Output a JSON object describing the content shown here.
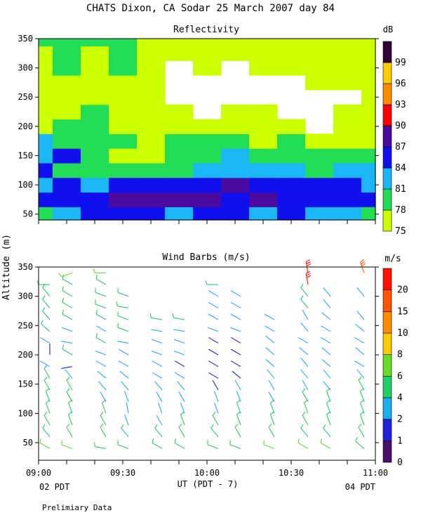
{
  "title": "CHATS Dixon, CA  Sodar  25 March 2007  day  84",
  "footer": {
    "left_time_label": "02 PDT",
    "right_time_label": "04 PDT",
    "xlabel": "UT  (PDT - 7)",
    "note": "Prelimiary Data"
  },
  "shared_axis": {
    "ylabel": "Altitude (m)"
  },
  "chart_data": [
    {
      "type": "heatmap",
      "title": "Reflectivity",
      "ylim": [
        40,
        350
      ],
      "yticks": [
        50,
        100,
        150,
        200,
        250,
        300,
        350
      ],
      "xlim_minutes": [
        0,
        120
      ],
      "colorbar": {
        "unit": "dB",
        "levels": [
          75,
          78,
          81,
          84,
          87,
          90,
          93,
          96,
          99
        ],
        "labels": [
          "75",
          "78",
          "81",
          "84",
          "87",
          "90",
          "93",
          "96",
          "99"
        ],
        "colors": [
          "#ccff00",
          "#22dd55",
          "#1ab6f5",
          "#1010ee",
          "#4a0aa0",
          "#ff0000",
          "#ff8c00",
          "#ffcc00",
          "#330033"
        ]
      },
      "time_minutes": [
        0,
        10,
        20,
        30,
        40,
        50,
        60,
        70,
        80,
        90,
        100,
        110,
        120
      ],
      "altitudes": [
        50,
        75,
        100,
        125,
        150,
        175,
        200,
        225,
        250,
        275,
        300,
        325,
        350
      ],
      "values_db": [
        [
          79,
          82,
          84,
          86,
          84,
          83,
          84,
          85,
          83,
          84,
          83,
          81,
          80
        ],
        [
          84,
          84,
          86,
          87,
          87,
          88,
          89,
          86,
          87,
          85,
          86,
          86,
          84
        ],
        [
          82,
          84,
          83,
          84,
          85,
          85,
          86,
          87,
          85,
          84,
          86,
          85,
          83
        ],
        [
          84,
          80,
          79,
          78,
          79,
          80,
          81,
          82,
          81,
          82,
          80,
          82,
          81
        ],
        [
          82,
          85,
          79,
          77,
          77,
          78,
          78,
          81,
          79,
          80,
          79,
          78,
          79
        ],
        [
          81,
          79,
          78,
          78,
          77,
          78,
          79,
          78,
          77,
          78,
          76,
          77,
          77
        ],
        [
          77,
          78,
          78,
          77,
          77,
          76,
          76,
          76,
          75,
          75,
          74,
          75,
          76
        ],
        [
          76,
          77,
          78,
          77,
          76,
          75,
          74,
          75,
          75,
          74,
          74,
          75,
          75
        ],
        [
          75,
          76,
          77,
          76,
          75,
          74,
          73,
          74,
          74,
          73,
          74,
          74,
          75
        ],
        [
          76,
          76,
          77,
          76,
          75,
          74,
          74,
          73,
          74,
          74,
          75,
          75,
          75
        ],
        [
          77,
          78,
          77,
          78,
          76,
          74,
          75,
          74,
          76,
          76,
          75,
          76,
          76
        ],
        [
          76,
          79,
          77,
          78,
          76,
          76,
          75,
          75,
          76,
          76,
          77,
          76,
          75
        ],
        [
          78,
          80,
          79,
          78,
          77,
          76,
          75,
          76,
          77,
          77,
          76,
          76,
          75
        ]
      ]
    },
    {
      "type": "scatter",
      "title": "Wind Barbs (m/s)",
      "ylim": [
        20,
        350
      ],
      "yticks": [
        50,
        100,
        150,
        200,
        250,
        300,
        350
      ],
      "xlim_minutes": [
        0,
        120
      ],
      "xticks": [
        {
          "minute": 0,
          "label": "09:00"
        },
        {
          "minute": 30,
          "label": "09:30"
        },
        {
          "minute": 60,
          "label": "10:00"
        },
        {
          "minute": 90,
          "label": "10:30"
        },
        {
          "minute": 120,
          "label": "11:00"
        }
      ],
      "colorbar": {
        "unit": "m/s",
        "levels": [
          0,
          1,
          2,
          4,
          6,
          8,
          10,
          15,
          20
        ],
        "labels": [
          "0",
          "1",
          "2",
          "4",
          "6",
          "8",
          "10",
          "15",
          "20"
        ],
        "colors": [
          "#4b0d6b",
          "#2020dd",
          "#1aaef0",
          "#22cc66",
          "#66dd22",
          "#ffcc00",
          "#ff8c00",
          "#ff5500",
          "#ff1100"
        ]
      },
      "time_minutes": [
        4,
        12,
        24,
        32,
        44,
        52,
        64,
        72,
        84,
        96,
        104,
        116
      ],
      "altitudes": [
        40,
        60,
        80,
        100,
        120,
        140,
        160,
        180,
        200,
        220,
        240,
        260,
        280,
        300,
        320,
        340
      ],
      "speed_ms": [
        [
          6,
          6,
          4,
          4,
          4,
          4,
          4,
          4,
          6,
          6,
          6,
          4
        ],
        [
          4,
          4,
          4,
          4,
          4,
          4,
          4,
          4,
          4,
          4,
          4,
          4
        ],
        [
          4,
          4,
          4,
          3,
          3,
          4,
          4,
          4,
          4,
          4,
          4,
          4
        ],
        [
          4,
          4,
          4,
          3,
          2,
          3,
          3,
          4,
          4,
          4,
          4,
          4
        ],
        [
          4,
          4,
          3,
          3,
          2,
          2,
          2,
          3,
          3,
          4,
          4,
          4
        ],
        [
          4,
          4,
          3,
          2,
          2,
          2,
          1,
          2,
          3,
          3,
          3,
          4
        ],
        [
          4,
          3,
          3,
          2,
          2,
          2,
          1,
          1,
          3,
          3,
          3,
          3
        ],
        [
          3,
          1,
          3,
          2,
          2,
          1,
          1,
          1,
          3,
          3,
          2,
          2
        ],
        [
          1,
          4,
          2,
          2,
          2,
          2,
          1,
          1,
          2,
          2,
          2,
          2
        ],
        [
          3,
          2,
          4,
          3,
          3,
          2,
          1,
          1,
          2,
          3,
          2,
          2
        ],
        [
          4,
          3,
          3,
          4,
          3,
          3,
          2,
          2,
          3,
          2,
          2,
          2
        ],
        [
          4,
          4,
          4,
          4,
          4,
          4,
          2,
          2,
          3,
          2,
          2,
          2
        ],
        [
          4,
          4,
          4,
          4,
          0,
          0,
          3,
          3,
          0,
          4,
          2,
          0
        ],
        [
          4,
          4,
          4,
          4,
          0,
          0,
          2,
          3,
          0,
          4,
          2,
          2
        ],
        [
          4,
          4,
          4,
          0,
          0,
          0,
          4,
          0,
          0,
          20,
          0,
          0
        ],
        [
          0,
          6,
          6,
          0,
          0,
          0,
          0,
          0,
          0,
          20,
          0,
          15
        ]
      ],
      "direction_deg": [
        [
          300,
          290,
          280,
          290,
          300,
          300,
          290,
          290,
          290,
          300,
          300,
          310
        ],
        [
          320,
          330,
          330,
          320,
          320,
          330,
          320,
          330,
          330,
          320,
          320,
          330
        ],
        [
          330,
          340,
          330,
          340,
          330,
          340,
          330,
          340,
          340,
          330,
          340,
          340
        ],
        [
          340,
          340,
          340,
          350,
          340,
          340,
          340,
          340,
          340,
          340,
          340,
          340
        ],
        [
          340,
          330,
          330,
          340,
          330,
          330,
          340,
          340,
          330,
          330,
          340,
          340
        ],
        [
          330,
          330,
          320,
          320,
          320,
          320,
          330,
          330,
          330,
          330,
          320,
          330
        ],
        [
          330,
          320,
          310,
          310,
          300,
          300,
          300,
          310,
          320,
          320,
          320,
          320
        ],
        [
          300,
          260,
          300,
          300,
          300,
          300,
          300,
          300,
          310,
          320,
          310,
          300
        ],
        [
          0,
          300,
          290,
          300,
          290,
          290,
          300,
          300,
          310,
          310,
          310,
          310
        ],
        [
          300,
          280,
          300,
          280,
          290,
          290,
          300,
          300,
          310,
          300,
          300,
          300
        ],
        [
          310,
          290,
          300,
          290,
          280,
          280,
          290,
          290,
          300,
          320,
          300,
          310
        ],
        [
          320,
          300,
          300,
          290,
          280,
          280,
          300,
          300,
          300,
          330,
          310,
          320
        ],
        [
          320,
          300,
          290,
          280,
          0,
          0,
          300,
          300,
          0,
          320,
          320,
          0
        ],
        [
          320,
          300,
          290,
          290,
          0,
          0,
          300,
          300,
          0,
          320,
          320,
          320
        ],
        [
          270,
          300,
          300,
          0,
          0,
          0,
          270,
          0,
          0,
          350,
          0,
          0
        ],
        [
          0,
          250,
          270,
          0,
          0,
          0,
          0,
          0,
          0,
          350,
          0,
          340
        ]
      ]
    }
  ]
}
